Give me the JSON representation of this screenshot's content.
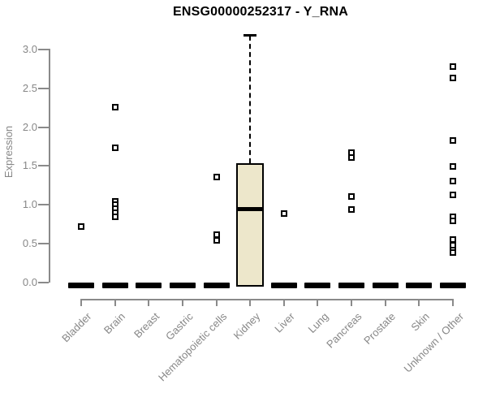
{
  "title": "ENSG00000252317 - Y_RNA",
  "colors": {
    "box_fill": "#ede7cb",
    "box_border": "#000000",
    "axis": "#8a8a8a",
    "tick_text": "#878787",
    "title_text": "#000000",
    "marker": "#000000"
  },
  "chart_data": {
    "type": "boxplot",
    "title": "ENSG00000252317 - Y_RNA",
    "xlabel": "",
    "ylabel": "Expression",
    "ylim": [
      0,
      3.2
    ],
    "yticks": [
      0,
      0.5,
      1,
      1.5,
      2,
      2.5,
      3
    ],
    "ytick_labels": [
      "0.0",
      "0.5",
      "1.0",
      "1.5",
      "2.0",
      "2.5",
      "3.0"
    ],
    "grid": false,
    "legend": false,
    "categories": [
      "Bladder",
      "Brain",
      "Breast",
      "Gastric",
      "Hematopoietic cells",
      "Kidney",
      "Liver",
      "Lung",
      "Pancreas",
      "Prostate",
      "Skin",
      "Unknown / Other"
    ],
    "boxes": [
      {
        "category": "Bladder",
        "median": 0,
        "q1": 0,
        "q3": 0,
        "whisker_low": 0,
        "whisker_high": 0,
        "outliers": [
          0.72
        ]
      },
      {
        "category": "Brain",
        "median": 0,
        "q1": 0,
        "q3": 0,
        "whisker_low": 0,
        "whisker_high": 0,
        "outliers": [
          2.26,
          1.73,
          1.05,
          1.0,
          0.95,
          0.9,
          0.85
        ]
      },
      {
        "category": "Breast",
        "median": 0,
        "q1": 0,
        "q3": 0,
        "whisker_low": 0,
        "whisker_high": 0,
        "outliers": []
      },
      {
        "category": "Gastric",
        "median": 0,
        "q1": 0,
        "q3": 0,
        "whisker_low": 0,
        "whisker_high": 0,
        "outliers": []
      },
      {
        "category": "Hematopoietic cells",
        "median": 0,
        "q1": 0,
        "q3": 0,
        "whisker_low": 0,
        "whisker_high": 0,
        "outliers": [
          1.36,
          0.62,
          0.54
        ]
      },
      {
        "category": "Kidney",
        "median": 0.95,
        "q1": 0,
        "q3": 1.54,
        "whisker_low": 0,
        "whisker_high": 3.18,
        "outliers": []
      },
      {
        "category": "Liver",
        "median": 0,
        "q1": 0,
        "q3": 0,
        "whisker_low": 0,
        "whisker_high": 0,
        "outliers": [
          0.89
        ]
      },
      {
        "category": "Lung",
        "median": 0,
        "q1": 0,
        "q3": 0,
        "whisker_low": 0,
        "whisker_high": 0,
        "outliers": []
      },
      {
        "category": "Pancreas",
        "median": 0,
        "q1": 0,
        "q3": 0,
        "whisker_low": 0,
        "whisker_high": 0,
        "outliers": [
          1.67,
          1.61,
          1.11,
          0.94
        ]
      },
      {
        "category": "Prostate",
        "median": 0,
        "q1": 0,
        "q3": 0,
        "whisker_low": 0,
        "whisker_high": 0,
        "outliers": []
      },
      {
        "category": "Skin",
        "median": 0,
        "q1": 0,
        "q3": 0,
        "whisker_low": 0,
        "whisker_high": 0,
        "outliers": []
      },
      {
        "category": "Unknown / Other",
        "median": 0,
        "q1": 0,
        "q3": 0,
        "whisker_low": 0,
        "whisker_high": 0,
        "outliers": [
          2.78,
          2.63,
          1.83,
          1.49,
          1.31,
          1.13,
          0.85,
          0.79,
          0.55,
          0.48,
          0.42,
          0.39
        ]
      }
    ]
  }
}
